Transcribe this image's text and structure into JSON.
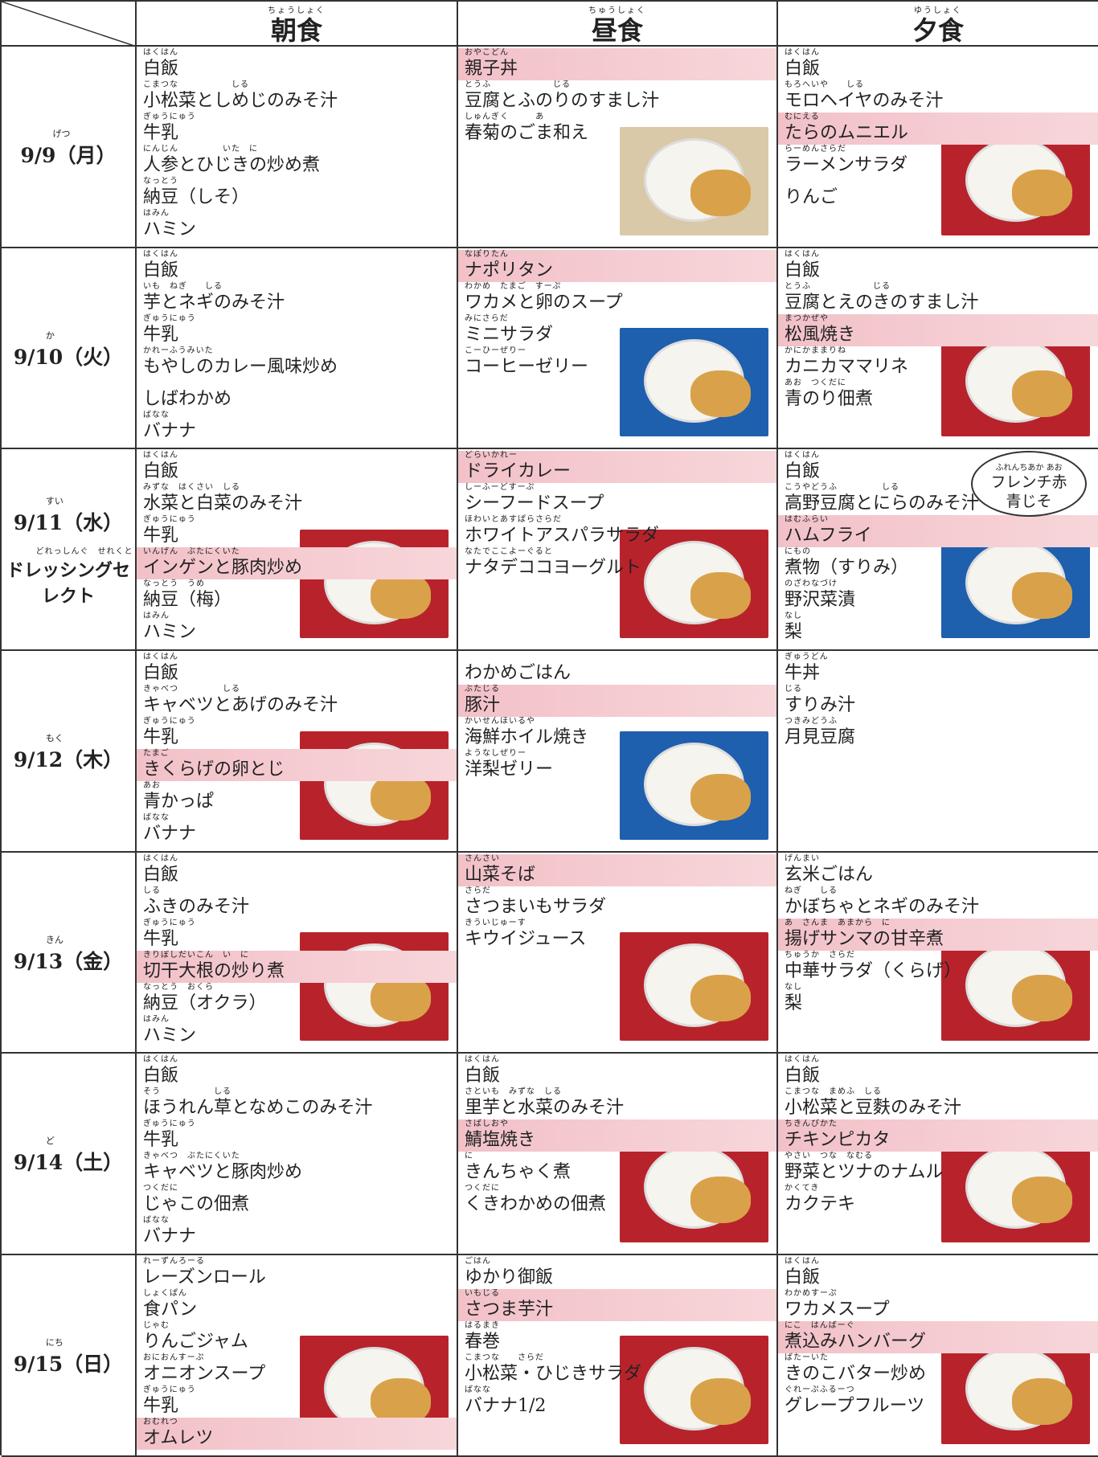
{
  "header": {
    "columns": [
      {
        "text": "朝食",
        "ruby": "ちょうしょく"
      },
      {
        "text": "昼食",
        "ruby": "ちゅうしょく"
      },
      {
        "text": "夕食",
        "ruby": "ゆうしょく"
      }
    ]
  },
  "days": [
    {
      "date": {
        "text": "9/9（月）",
        "ruby": "げつ"
      },
      "meals": [
        {
          "items": [
            {
              "text": "白飯",
              "ruby": "はくはん"
            },
            {
              "text": "小松菜としめじのみそ汁",
              "ruby": "こまつな　　　　　　しる"
            },
            {
              "text": "牛乳",
              "ruby": "ぎゅうにゅう"
            },
            {
              "text": "人参とひじきの炒め煮",
              "ruby": "にんじん　　　　　いた　に"
            },
            {
              "text": "納豆（しそ）",
              "ruby": "なっとう"
            },
            {
              "text": "ハミン",
              "ruby": "はみん"
            }
          ]
        },
        {
          "photo": "#d9c9a8",
          "items": [
            {
              "text": "親子丼",
              "ruby": "おやこどん",
              "hl": true
            },
            {
              "text": "豆腐とふのりのすまし汁",
              "ruby": "とうふ　　　　　　　じる"
            },
            {
              "text": "春菊のごま和え",
              "ruby": "しゅんぎく　　　あ"
            }
          ]
        },
        {
          "photo": "#b8232b",
          "items": [
            {
              "text": "白飯",
              "ruby": "はくはん"
            },
            {
              "text": "モロヘイヤのみそ汁",
              "ruby": "もろへいや　　しる"
            },
            {
              "text": "たらのムニエル",
              "ruby": "むにえる",
              "hl": true
            },
            {
              "text": "ラーメンサラダ",
              "ruby": "らーめんさらだ"
            },
            {
              "text": "りんご"
            }
          ]
        }
      ]
    },
    {
      "date": {
        "text": "9/10（火）",
        "ruby": "か"
      },
      "meals": [
        {
          "items": [
            {
              "text": "白飯",
              "ruby": "はくはん"
            },
            {
              "text": "芋とネギのみそ汁",
              "ruby": "いも　ねぎ　　しる"
            },
            {
              "text": "牛乳",
              "ruby": "ぎゅうにゅう"
            },
            {
              "text": "もやしのカレー風味炒め",
              "ruby": "かれーふうみいた"
            },
            {
              "text": "しばわかめ"
            },
            {
              "text": "バナナ",
              "ruby": "ばなな"
            }
          ]
        },
        {
          "photo": "#1e5fae",
          "items": [
            {
              "text": "ナポリタン",
              "ruby": "なぽりたん",
              "hl": true
            },
            {
              "text": "ワカメと卵のスープ",
              "ruby": "わかめ　たまご　すーぷ"
            },
            {
              "text": "ミニサラダ",
              "ruby": "みにさらだ"
            },
            {
              "text": "コーヒーゼリー",
              "ruby": "こーひーぜりー"
            }
          ]
        },
        {
          "photo": "#b8232b",
          "items": [
            {
              "text": "白飯",
              "ruby": "はくはん"
            },
            {
              "text": "豆腐とえのきのすまし汁",
              "ruby": "とうふ　　　　　　　じる"
            },
            {
              "text": "松風焼き",
              "ruby": "まつかぜや",
              "hl": true
            },
            {
              "text": "カニカママリネ",
              "ruby": "かにかままりね"
            },
            {
              "text": "青のり佃煮",
              "ruby": "あお　つくだに"
            }
          ]
        }
      ]
    },
    {
      "date": {
        "text": "9/11（水）",
        "ruby": "すい"
      },
      "extra": {
        "text": "ドレッシングセレクト",
        "ruby": "どれっしんぐ　せれくと"
      },
      "meals": [
        {
          "photo": "#b8232b",
          "items": [
            {
              "text": "白飯",
              "ruby": "はくはん"
            },
            {
              "text": "水菜と白菜のみそ汁",
              "ruby": "みずな　はくさい　しる"
            },
            {
              "text": "牛乳",
              "ruby": "ぎゅうにゅう"
            },
            {
              "text": "インゲンと豚肉炒め",
              "ruby": "いんげん　ぶたにくいた",
              "hl": true
            },
            {
              "text": "納豆（梅）",
              "ruby": "なっとう　うめ"
            },
            {
              "text": "ハミン",
              "ruby": "はみん"
            }
          ]
        },
        {
          "photo": "#b8232b",
          "items": [
            {
              "text": "ドライカレー",
              "ruby": "どらいかれー",
              "hl": true
            },
            {
              "text": "シーフードスープ",
              "ruby": "しーふーどすーぷ"
            },
            {
              "text": "ホワイトアスパラサラダ",
              "ruby": "ほわいとあすぱらさらだ"
            },
            {
              "text": "ナタデココヨーグルト",
              "ruby": "なたでここよーぐると"
            }
          ]
        },
        {
          "photo": "#1e5fae",
          "note": {
            "text": "フレンチ赤 青じそ",
            "ruby": "ふれんちあか あお"
          },
          "items": [
            {
              "text": "白飯",
              "ruby": "はくはん"
            },
            {
              "text": "高野豆腐とにらのみそ汁",
              "ruby": "こうやどうふ　　　　　しる"
            },
            {
              "text": "ハムフライ",
              "ruby": "はむふらい",
              "hl": true
            },
            {
              "text": "煮物（すりみ）",
              "ruby": "にもの"
            },
            {
              "text": "野沢菜漬",
              "ruby": "のざわなづけ"
            },
            {
              "text": "梨",
              "ruby": "なし"
            }
          ]
        }
      ]
    },
    {
      "date": {
        "text": "9/12（木）",
        "ruby": "もく"
      },
      "meals": [
        {
          "photo": "#b8232b",
          "items": [
            {
              "text": "白飯",
              "ruby": "はくはん"
            },
            {
              "text": "キャベツとあげのみそ汁",
              "ruby": "きゃべつ　　　　　しる"
            },
            {
              "text": "牛乳",
              "ruby": "ぎゅうにゅう"
            },
            {
              "text": "きくらげの卵とじ",
              "ruby": "たまご",
              "hl": true
            },
            {
              "text": "青かっぱ",
              "ruby": "あお"
            },
            {
              "text": "バナナ",
              "ruby": "ばなな"
            }
          ]
        },
        {
          "photo": "#1e5fae",
          "items": [
            {
              "text": "わかめごはん"
            },
            {
              "text": "豚汁",
              "ruby": "ぶたじる",
              "hl": true
            },
            {
              "text": "海鮮ホイル焼き",
              "ruby": "かいせんほいるや"
            },
            {
              "text": "洋梨ゼリー",
              "ruby": "ようなしぜりー"
            }
          ]
        },
        {
          "items": [
            {
              "text": "牛丼",
              "ruby": "ぎゅうどん"
            },
            {
              "text": "すりみ汁",
              "ruby": "じる"
            },
            {
              "text": "月見豆腐",
              "ruby": "つきみどうふ"
            }
          ]
        }
      ]
    },
    {
      "date": {
        "text": "9/13（金）",
        "ruby": "きん"
      },
      "meals": [
        {
          "photo": "#b8232b",
          "items": [
            {
              "text": "白飯",
              "ruby": "はくはん"
            },
            {
              "text": "ふきのみそ汁",
              "ruby": "しる"
            },
            {
              "text": "牛乳",
              "ruby": "ぎゅうにゅう"
            },
            {
              "text": "切干大根の炒り煮",
              "ruby": "きりぼしだいこん　い　に",
              "hl": true
            },
            {
              "text": "納豆（オクラ）",
              "ruby": "なっとう　おくら"
            },
            {
              "text": "ハミン",
              "ruby": "はみん"
            }
          ]
        },
        {
          "photo": "#b8232b",
          "items": [
            {
              "text": "山菜そば",
              "ruby": "さんさい",
              "hl": true
            },
            {
              "text": "さつまいもサラダ",
              "ruby": "さらだ"
            },
            {
              "text": "キウイジュース",
              "ruby": "きういじゅーす"
            }
          ]
        },
        {
          "photo": "#b8232b",
          "items": [
            {
              "text": "玄米ごはん",
              "ruby": "げんまい"
            },
            {
              "text": "かぼちゃとネギのみそ汁",
              "ruby": "ねぎ　　しる"
            },
            {
              "text": "揚げサンマの甘辛煮",
              "ruby": "あ　さんま　あまから　に",
              "hl": true
            },
            {
              "text": "中華サラダ（くらげ）",
              "ruby": "ちゅうか　さらだ"
            },
            {
              "text": "梨",
              "ruby": "なし"
            }
          ]
        }
      ]
    },
    {
      "date": {
        "text": "9/14（土）",
        "ruby": "ど"
      },
      "meals": [
        {
          "items": [
            {
              "text": "白飯",
              "ruby": "はくはん"
            },
            {
              "text": "ほうれん草となめこのみそ汁",
              "ruby": "そう　　　　　　しる"
            },
            {
              "text": "牛乳",
              "ruby": "ぎゅうにゅう"
            },
            {
              "text": "キャベツと豚肉炒め",
              "ruby": "きゃべつ　ぶたにくいた"
            },
            {
              "text": "じゃこの佃煮",
              "ruby": "つくだに"
            },
            {
              "text": "バナナ",
              "ruby": "ばなな"
            }
          ]
        },
        {
          "photo": "#b8232b",
          "items": [
            {
              "text": "白飯",
              "ruby": "はくはん"
            },
            {
              "text": "里芋と水菜のみそ汁",
              "ruby": "さといも　みずな　しる"
            },
            {
              "text": "鯖塩焼き",
              "ruby": "さばしおや",
              "hl": true
            },
            {
              "text": "きんちゃく煮",
              "ruby": "に"
            },
            {
              "text": "くきわかめの佃煮",
              "ruby": "つくだに"
            }
          ]
        },
        {
          "photo": "#b8232b",
          "items": [
            {
              "text": "白飯",
              "ruby": "はくはん"
            },
            {
              "text": "小松菜と豆麩のみそ汁",
              "ruby": "こまつな　まめふ　しる"
            },
            {
              "text": "チキンピカタ",
              "ruby": "ちきんぴかた",
              "hl": true
            },
            {
              "text": "野菜とツナのナムル",
              "ruby": "やさい　つな　なむる"
            },
            {
              "text": "カクテキ",
              "ruby": "かくてき"
            }
          ]
        }
      ]
    },
    {
      "date": {
        "text": "9/15（日）",
        "ruby": "にち"
      },
      "meals": [
        {
          "photo": "#b8232b",
          "items": [
            {
              "text": "レーズンロール",
              "ruby": "れーずんろーる"
            },
            {
              "text": "食パン",
              "ruby": "しょくぱん"
            },
            {
              "text": "りんごジャム",
              "ruby": "じゃむ"
            },
            {
              "text": "オニオンスープ",
              "ruby": "おにおんすーぷ"
            },
            {
              "text": "牛乳",
              "ruby": "ぎゅうにゅう"
            },
            {
              "text": "オムレツ",
              "ruby": "おむれつ",
              "hl": true
            }
          ]
        },
        {
          "photo": "#b8232b",
          "items": [
            {
              "text": "ゆかり御飯",
              "ruby": "ごはん"
            },
            {
              "text": "さつま芋汁",
              "ruby": "いもじる",
              "hl": true
            },
            {
              "text": "春巻",
              "ruby": "はるまき"
            },
            {
              "text": "小松菜・ひじきサラダ",
              "ruby": "こまつな　　さらだ"
            },
            {
              "text": "バナナ1/2",
              "ruby": "ばなな"
            }
          ]
        },
        {
          "photo": "#b8232b",
          "items": [
            {
              "text": "白飯",
              "ruby": "はくはん"
            },
            {
              "text": "ワカメスープ",
              "ruby": "わかめすーぷ"
            },
            {
              "text": "煮込みハンバーグ",
              "ruby": "にこ　はんばーぐ",
              "hl": true
            },
            {
              "text": "きのこバター炒め",
              "ruby": "ばたーいた"
            },
            {
              "text": "グレープフルーツ",
              "ruby": "ぐれーぷふるーつ"
            }
          ]
        }
      ]
    }
  ]
}
